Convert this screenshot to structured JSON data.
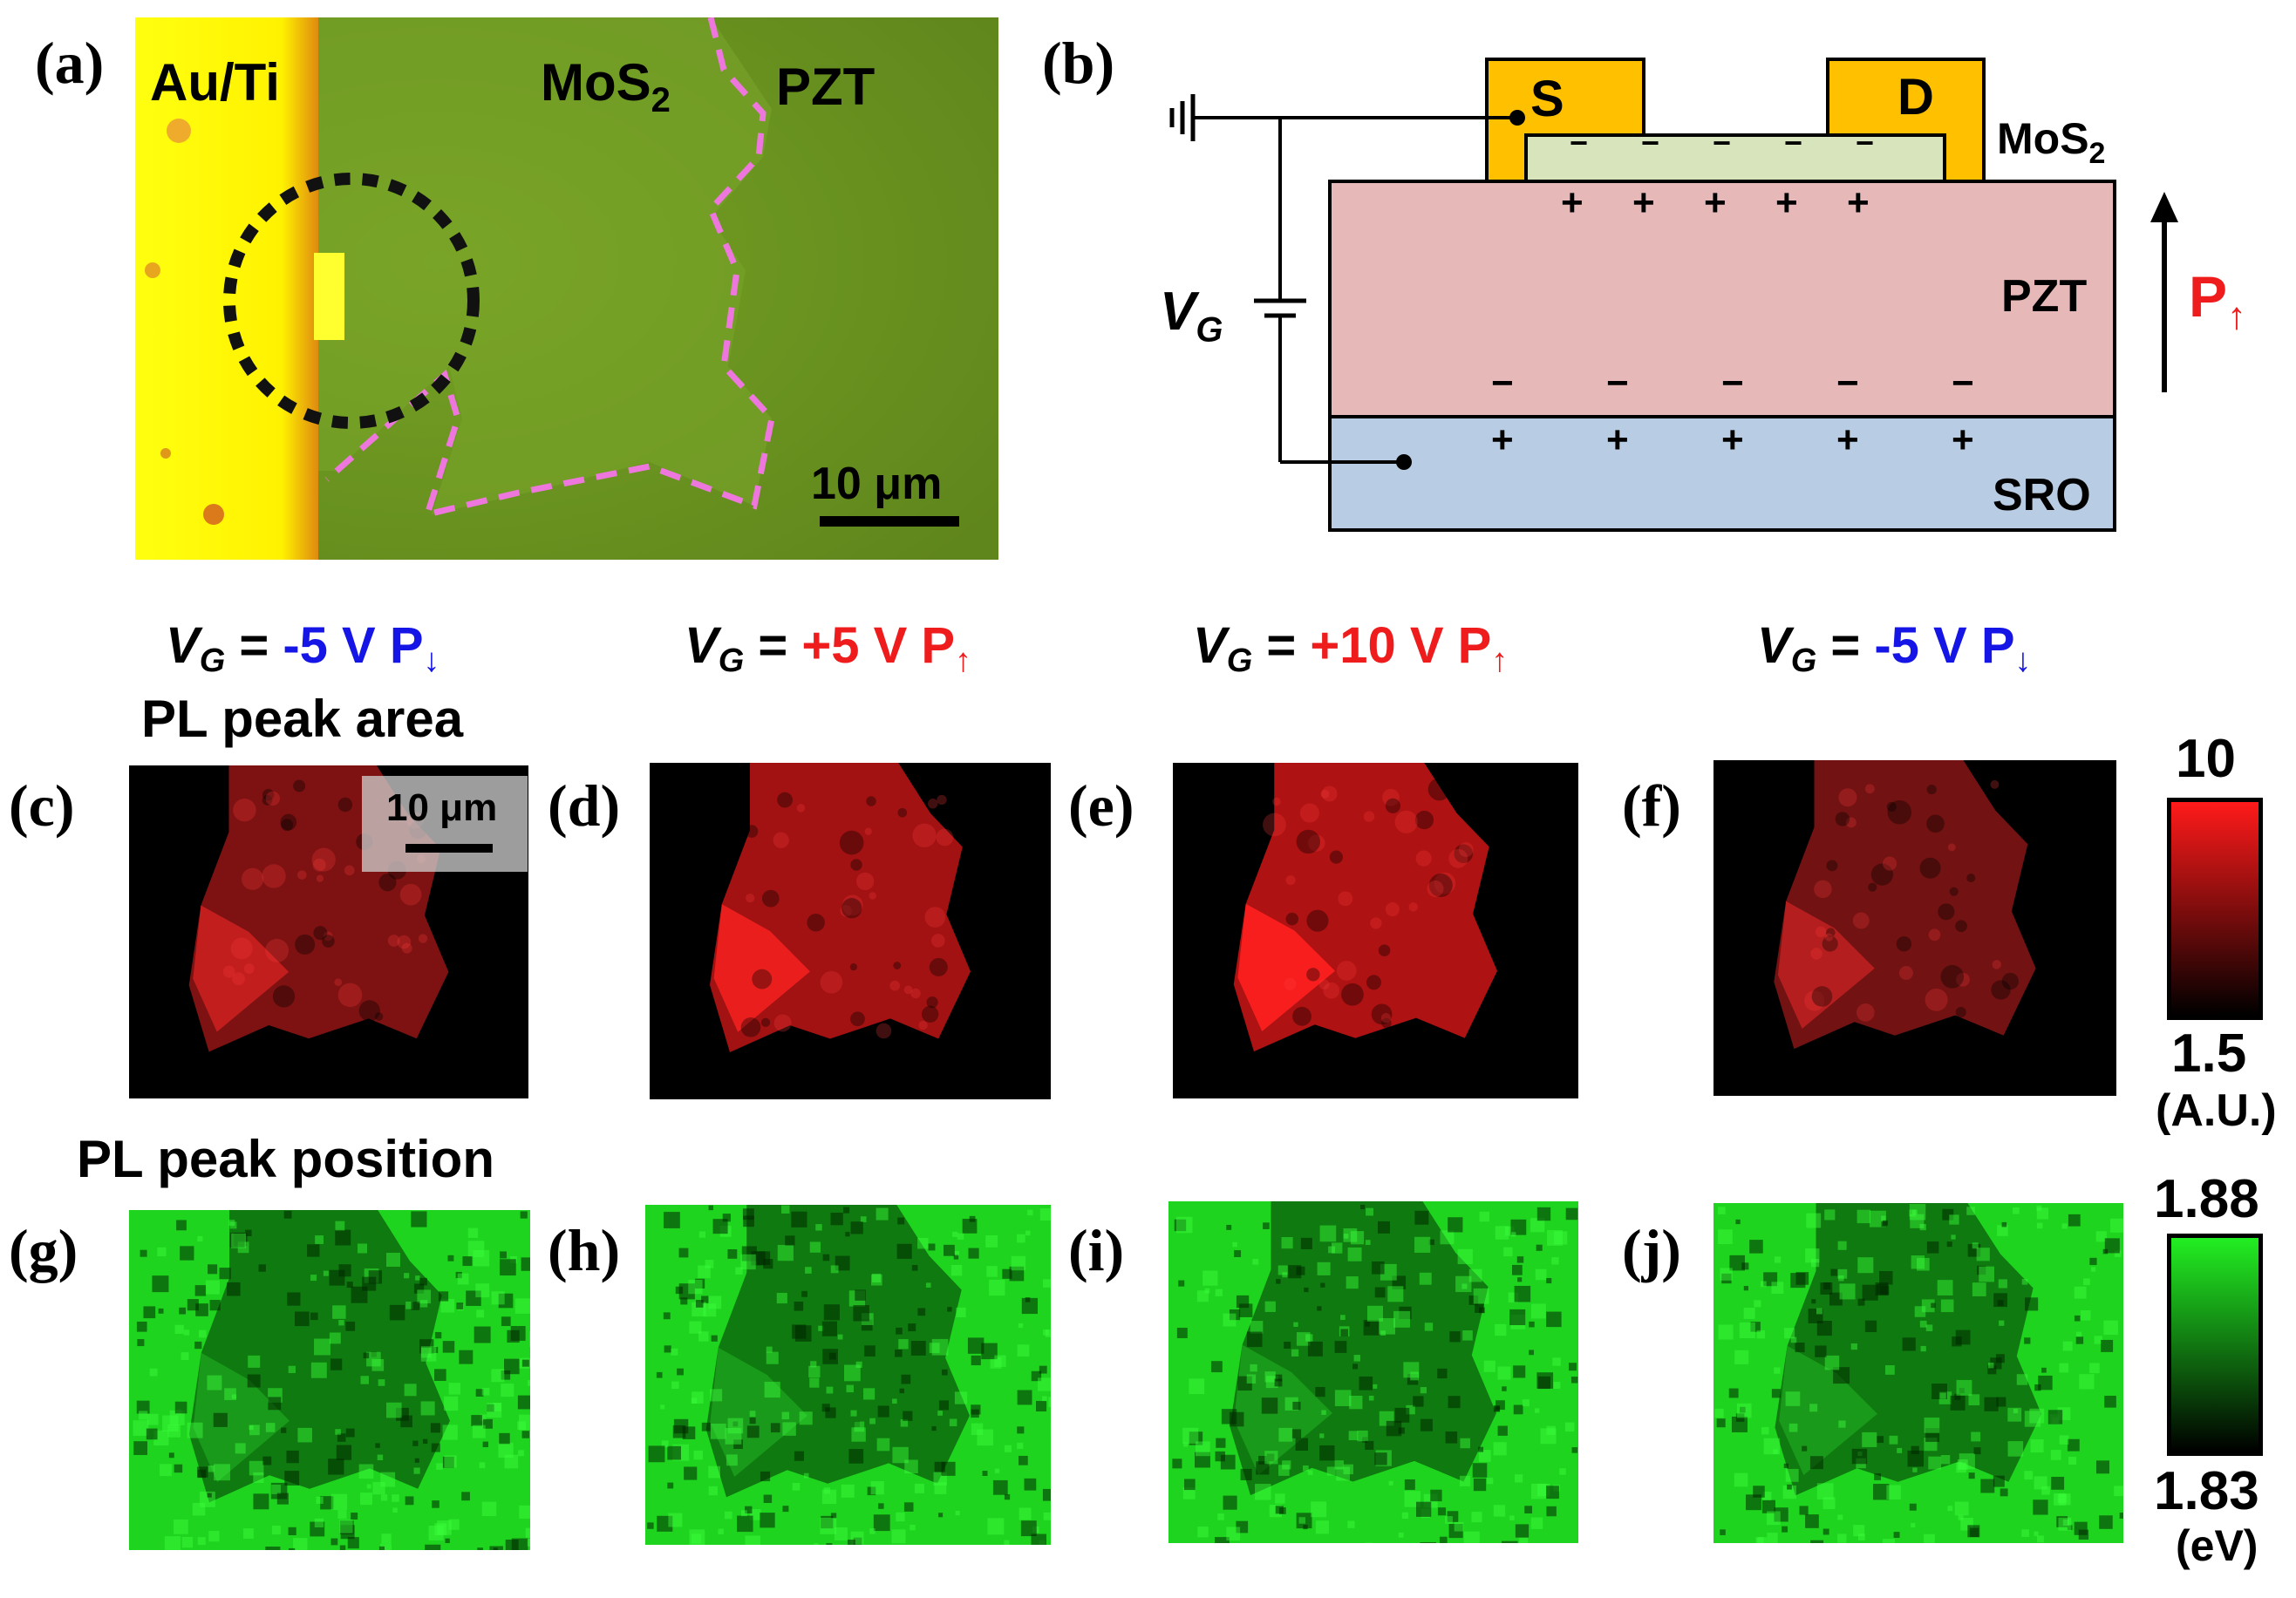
{
  "panel_labels": {
    "a": "(a)",
    "b": "(b)",
    "c": "(c)",
    "d": "(d)",
    "e": "(e)",
    "f": "(f)",
    "g": "(g)",
    "h": "(h)",
    "i": "(i)",
    "j": "(j)"
  },
  "panel_a": {
    "electrode_label": "Au/Ti",
    "mos2_label": "MoS",
    "mos2_sub": "2",
    "pzt_label": "PZT",
    "scale_bar": "10 μm"
  },
  "panel_b": {
    "source": "S",
    "drain": "D",
    "mos2_label": "MoS",
    "mos2_sub": "2",
    "pzt_label": "PZT",
    "sro_label": "SRO",
    "gate_label": "V",
    "gate_sub": "G",
    "polarization_label": "P",
    "polarization_sub": "↑",
    "minus_sign": "−",
    "plus_sign": "+"
  },
  "conditions": [
    {
      "v_label": "V",
      "v_sub": "G",
      "eq": " = ",
      "value": "-5 V P",
      "arrow": "↓",
      "polarity": "negative"
    },
    {
      "v_label": "V",
      "v_sub": "G",
      "eq": " = ",
      "value": "+5 V P",
      "arrow": "↑",
      "polarity": "positive"
    },
    {
      "v_label": "V",
      "v_sub": "G",
      "eq": " = ",
      "value": "+10 V P",
      "arrow": "↑",
      "polarity": "positive"
    },
    {
      "v_label": "V",
      "v_sub": "G",
      "eq": " = ",
      "value": "-5 V P",
      "arrow": "↓",
      "polarity": "negative"
    }
  ],
  "row_titles": {
    "area": "PL peak area",
    "position": "PL peak position"
  },
  "map_scale_bar": "10 μm",
  "colorbars": {
    "area": {
      "max": "10",
      "min": "1.5",
      "unit": "(A.U.)",
      "color": "#ff1a1a"
    },
    "position": {
      "max": "1.88",
      "min": "1.83",
      "unit": "(eV)",
      "color": "#22ee22"
    }
  },
  "colors": {
    "electrode": "#ffff00",
    "mos2_film": "#6f9a22",
    "pzt_substrate": "#5a7c18",
    "boundary_dash": "#ee77dd",
    "pzt_layer": "#e6b8b7",
    "sro_layer": "#b8cce4",
    "mos2_layer": "#d7e4bc",
    "contacts": "#ffc000",
    "positive": "#ee1c1c",
    "negative": "#1515e6"
  },
  "map_intensity": {
    "area": [
      0.55,
      0.85,
      0.95,
      0.45
    ],
    "position_texture": [
      1,
      1,
      1,
      1
    ]
  }
}
